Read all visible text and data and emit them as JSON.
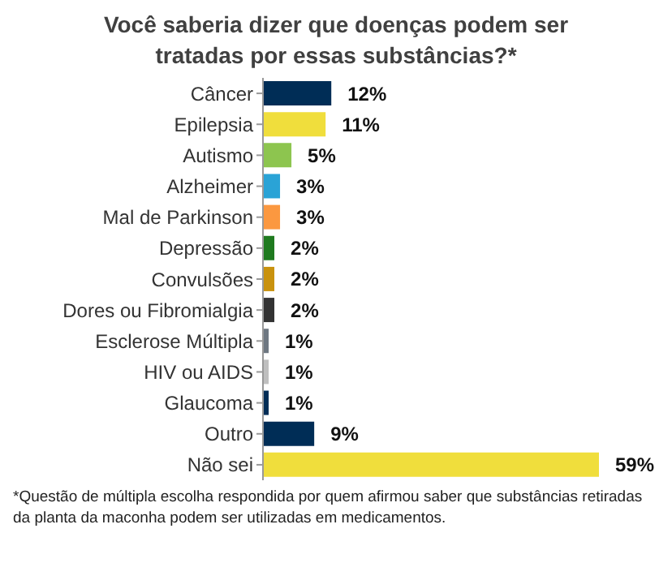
{
  "chart_data": {
    "type": "bar",
    "orientation": "horizontal",
    "title": "Você saberia dizer que doenças podem ser tratadas por essas substâncias?*",
    "categories": [
      "Câncer",
      "Epilepsia",
      "Autismo",
      "Alzheimer",
      "Mal de Parkinson",
      "Depressão",
      "Convulsões",
      "Dores ou Fibromialgia",
      "Esclerose Múltipla",
      "HIV ou AIDS",
      "Glaucoma",
      "Outro",
      "Não sei"
    ],
    "values": [
      12,
      11,
      5,
      3,
      3,
      2,
      2,
      2,
      1,
      1,
      1,
      9,
      59
    ],
    "colors": [
      "#002d56",
      "#f0de3c",
      "#8dc54f",
      "#2aa3d6",
      "#fb9840",
      "#1f7a1f",
      "#c9920e",
      "#333333",
      "#6e7781",
      "#bfbfbf",
      "#002d56",
      "#002d56",
      "#f0de3c"
    ],
    "value_labels": [
      "12%",
      "11%",
      "5%",
      "3%",
      "3%",
      "2%",
      "2%",
      "2%",
      "1%",
      "1%",
      "1%",
      "9%",
      "59%"
    ],
    "annotations": [
      "*Questão de múltipla escolha respondida por quem afirmou saber que substâncias retiradas da planta da maconha podem ser utilizadas em medicamentos."
    ]
  }
}
